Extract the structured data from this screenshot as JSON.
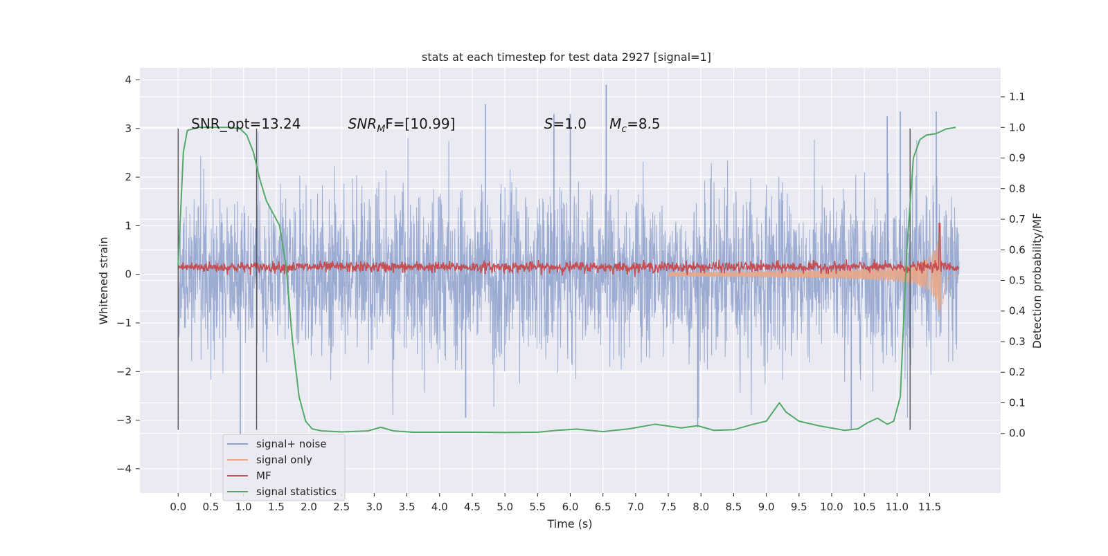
{
  "chart_data": {
    "type": "line",
    "title": "stats at each timestep for test data 2927 [signal=1]",
    "xlabel": "Time (s)",
    "ylabel_left": "Whitened strain",
    "ylabel_right": "Detection probability/MF",
    "xlim": [
      -0.5858,
      12.5858
    ],
    "ylim_left": [
      -4.5,
      4.25
    ],
    "ylim_right": [
      -0.195,
      1.195
    ],
    "x_ticks": [
      0.0,
      0.5,
      1.0,
      1.5,
      2.0,
      2.5,
      3.0,
      3.5,
      4.0,
      4.5,
      5.0,
      5.5,
      6.0,
      6.5,
      7.0,
      7.5,
      8.0,
      8.5,
      9.0,
      9.5,
      10.0,
      10.5,
      11.0,
      11.5
    ],
    "x_tick_labels": [
      "0.0",
      "0.5",
      "1.0",
      "1.5",
      "2.0",
      "2.5",
      "3.0",
      "3.5",
      "4.0",
      "4.5",
      "5.0",
      "5.5",
      "6.0",
      "6.5",
      "7.0",
      "7.5",
      "8.0",
      "8.5",
      "9.0",
      "9.5",
      "10.0",
      "10.5",
      "11.0",
      "11.5"
    ],
    "y_left_ticks": [
      -4,
      -3,
      -2,
      -1,
      0,
      1,
      2,
      3,
      4
    ],
    "y_left_tick_labels": [
      "−4",
      "−3",
      "−2",
      "−1",
      "0",
      "1",
      "2",
      "3",
      "4"
    ],
    "y_right_ticks": [
      0.0,
      0.1,
      0.2,
      0.3,
      0.4,
      0.5,
      0.6,
      0.7,
      0.8,
      0.9,
      1.0,
      1.1
    ],
    "y_right_tick_labels": [
      "0.0",
      "0.1",
      "0.2",
      "0.3",
      "0.4",
      "0.5",
      "0.6",
      "0.7",
      "0.8",
      "0.9",
      "1.0",
      "1.1"
    ],
    "grid": true,
    "legend_position": "lower-left",
    "annotations": [
      {
        "text": "SNR_opt=13.24",
        "x": 0.2,
        "y": 3.1
      },
      {
        "base": "SNR",
        "sub": "M",
        "rest": "F=[10.99]",
        "x": 2.6,
        "y": 3.1
      },
      {
        "base": "S",
        "sub": "",
        "rest": "=1.0",
        "x": 5.6,
        "y": 3.1
      },
      {
        "base": "M",
        "sub": "c",
        "rest": "=8.5",
        "x": 6.6,
        "y": 3.1
      }
    ],
    "vertical_lines": [
      0.0,
      1.2,
      11.2
    ],
    "vertical_line_range": [
      -3.2,
      3.0
    ],
    "series": [
      {
        "name": "signal+ noise",
        "color": "#8da0cb",
        "axis": "left",
        "x_range": [
          0.0,
          11.95
        ],
        "typical_amplitude": 1.0,
        "peak_max": 3.9,
        "peak_min": -3.3,
        "peaks": [
          {
            "x": 6.55,
            "y": 3.9
          },
          {
            "x": 4.7,
            "y": 3.5
          },
          {
            "x": 6.0,
            "y": 3.3
          },
          {
            "x": 11.05,
            "y": 3.35
          },
          {
            "x": 11.6,
            "y": 3.35
          },
          {
            "x": 10.85,
            "y": 3.25
          },
          {
            "x": 5.75,
            "y": 3.3
          },
          {
            "x": 0.95,
            "y": -3.3
          },
          {
            "x": 4.4,
            "y": -2.95
          },
          {
            "x": 10.3,
            "y": -3.2
          },
          {
            "x": 7.95,
            "y": -3.15
          }
        ]
      },
      {
        "name": "signal only",
        "color": "#e8a787",
        "axis": "left",
        "x_range": [
          7.5,
          11.95
        ],
        "description_peak": 1.0
      },
      {
        "name": "MF",
        "color": "#c44e52",
        "axis": "left",
        "x_range": [
          0.0,
          11.95
        ],
        "baseline": 0.15,
        "jitter": 0.1,
        "spike_x": 11.65,
        "spike_y": 1.05
      },
      {
        "name": "signal statistics",
        "color": "#55a868",
        "axis": "right",
        "x": [
          0.0,
          0.08,
          0.14,
          0.3,
          0.5,
          0.8,
          0.95,
          1.05,
          1.15,
          1.25,
          1.35,
          1.45,
          1.55,
          1.65,
          1.75,
          1.85,
          1.95,
          2.05,
          2.2,
          2.5,
          2.9,
          3.1,
          3.3,
          3.6,
          4.0,
          4.5,
          5.0,
          5.5,
          5.8,
          6.1,
          6.5,
          6.9,
          7.3,
          7.7,
          7.95,
          8.2,
          8.5,
          8.8,
          9.0,
          9.1,
          9.2,
          9.3,
          9.5,
          9.8,
          10.2,
          10.4,
          10.55,
          10.7,
          10.85,
          10.95,
          11.05,
          11.15,
          11.25,
          11.35,
          11.45,
          11.6,
          11.75,
          11.9
        ],
        "y": [
          0.55,
          0.92,
          0.99,
          1.0,
          1.0,
          1.0,
          0.995,
          0.975,
          0.92,
          0.83,
          0.76,
          0.72,
          0.68,
          0.55,
          0.3,
          0.12,
          0.04,
          0.015,
          0.008,
          0.005,
          0.008,
          0.02,
          0.008,
          0.004,
          0.004,
          0.004,
          0.003,
          0.004,
          0.01,
          0.014,
          0.006,
          0.015,
          0.03,
          0.018,
          0.025,
          0.01,
          0.012,
          0.03,
          0.04,
          0.07,
          0.1,
          0.07,
          0.04,
          0.025,
          0.01,
          0.015,
          0.035,
          0.05,
          0.03,
          0.04,
          0.12,
          0.6,
          0.9,
          0.96,
          0.975,
          0.98,
          0.995,
          1.0
        ]
      }
    ]
  }
}
